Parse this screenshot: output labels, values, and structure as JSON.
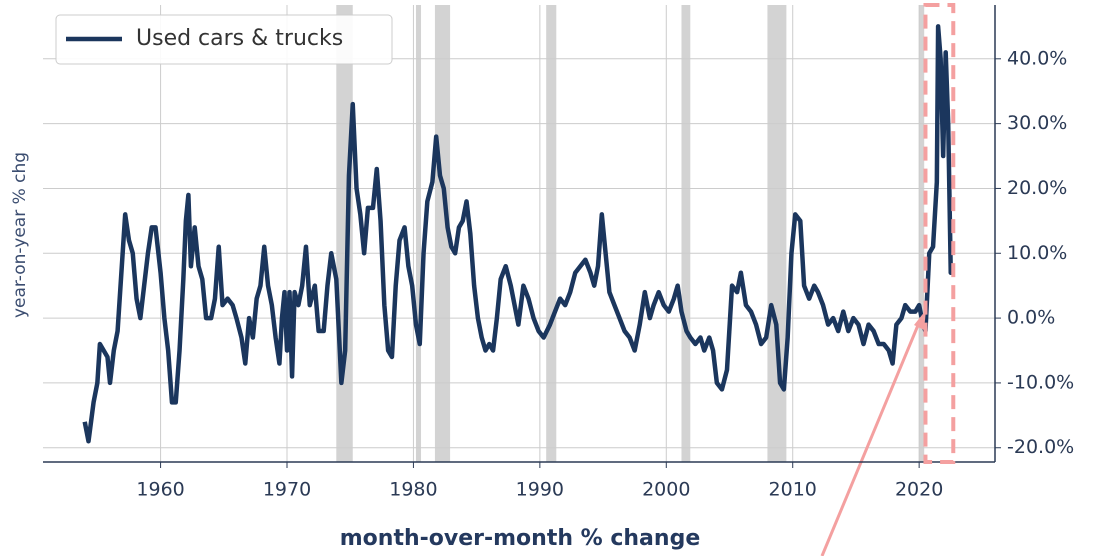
{
  "chart_data": {
    "type": "line",
    "x_label": "month-over-month % change",
    "y_label": "year-on-year % chg",
    "legend_position": "upper left",
    "grid": true,
    "xlim": [
      1950.7,
      2026
    ],
    "ylim": [
      -22.2,
      48.3
    ],
    "xticks": [
      1960,
      1970,
      1980,
      1990,
      2000,
      2010,
      2020
    ],
    "yticks": [
      {
        "value": -20,
        "label": "-20.0%"
      },
      {
        "value": -10,
        "label": "-10.0%"
      },
      {
        "value": 0,
        "label": "0.0%"
      },
      {
        "value": 10,
        "label": "10.0%"
      },
      {
        "value": 20,
        "label": "20.0%"
      },
      {
        "value": 30,
        "label": "30.0%"
      },
      {
        "value": 40,
        "label": "40.0%"
      }
    ],
    "y_axis_side": "right",
    "shaded_periods": [
      [
        1973.9,
        1975.2
      ],
      [
        1980.2,
        1980.6
      ],
      [
        1981.7,
        1982.9
      ],
      [
        1990.5,
        1991.3
      ],
      [
        2001.2,
        2001.9
      ],
      [
        2008.0,
        2009.5
      ],
      [
        2020.0,
        2020.4
      ]
    ],
    "shade_color": "#d3d3d3",
    "highlight_period": [
      2020.5,
      2022.7
    ],
    "highlight_color": "#f4a0a0",
    "x": [
      1954.0,
      1954.3,
      1954.7,
      1955.0,
      1955.2,
      1955.5,
      1955.8,
      1956.0,
      1956.3,
      1956.6,
      1957.0,
      1957.2,
      1957.5,
      1957.8,
      1958.1,
      1958.4,
      1958.7,
      1959.0,
      1959.3,
      1959.6,
      1960.0,
      1960.3,
      1960.6,
      1960.9,
      1961.2,
      1961.5,
      1961.8,
      1962.0,
      1962.2,
      1962.4,
      1962.7,
      1963.0,
      1963.3,
      1963.6,
      1964.0,
      1964.3,
      1964.6,
      1964.9,
      1965.3,
      1965.7,
      1966.0,
      1966.4,
      1966.7,
      1967.0,
      1967.3,
      1967.6,
      1967.9,
      1968.2,
      1968.5,
      1968.8,
      1969.1,
      1969.4,
      1969.6,
      1969.8,
      1970.0,
      1970.2,
      1970.4,
      1970.6,
      1970.9,
      1971.2,
      1971.5,
      1971.8,
      1972.2,
      1972.5,
      1972.9,
      1973.2,
      1973.5,
      1973.9,
      1974.1,
      1974.3,
      1974.6,
      1974.9,
      1975.2,
      1975.5,
      1975.8,
      1976.1,
      1976.4,
      1976.8,
      1977.1,
      1977.4,
      1977.7,
      1978.0,
      1978.3,
      1978.6,
      1978.9,
      1979.3,
      1979.6,
      1979.9,
      1980.2,
      1980.5,
      1980.8,
      1981.1,
      1981.5,
      1981.8,
      1982.1,
      1982.4,
      1982.7,
      1983.0,
      1983.3,
      1983.6,
      1983.9,
      1984.2,
      1984.5,
      1984.8,
      1985.1,
      1985.4,
      1985.7,
      1986.0,
      1986.3,
      1986.6,
      1986.9,
      1987.3,
      1987.7,
      1988.0,
      1988.3,
      1988.7,
      1989.1,
      1989.5,
      1989.9,
      1990.3,
      1990.8,
      1991.2,
      1991.6,
      1992.0,
      1992.4,
      1992.8,
      1993.2,
      1993.6,
      1994.0,
      1994.3,
      1994.6,
      1994.9,
      1995.2,
      1995.5,
      1995.9,
      1996.3,
      1996.7,
      1997.1,
      1997.5,
      1997.9,
      1998.3,
      1998.7,
      1999.0,
      1999.4,
      1999.8,
      2000.2,
      2000.6,
      2000.9,
      2001.2,
      2001.6,
      2001.9,
      2002.3,
      2002.7,
      2003.0,
      2003.4,
      2003.7,
      2004.0,
      2004.4,
      2004.8,
      2005.2,
      2005.6,
      2005.9,
      2006.3,
      2006.7,
      2007.1,
      2007.5,
      2007.9,
      2008.3,
      2008.7,
      2009.0,
      2009.3,
      2009.6,
      2009.9,
      2010.2,
      2010.6,
      2010.9,
      2011.3,
      2011.7,
      2012.0,
      2012.4,
      2012.8,
      2013.2,
      2013.6,
      2014.0,
      2014.4,
      2014.8,
      2015.2,
      2015.6,
      2016.0,
      2016.4,
      2016.8,
      2017.2,
      2017.6,
      2017.9,
      2018.2,
      2018.6,
      2018.9,
      2019.3,
      2019.7,
      2020.0,
      2020.3,
      2020.5,
      2020.8,
      2021.1,
      2021.4,
      2021.5,
      2021.7,
      2021.9,
      2022.1,
      2022.3,
      2022.5,
      2022.6
    ],
    "series": [
      {
        "name": "Used cars & trucks",
        "color": "#1b365d",
        "values": [
          -16,
          -19,
          -13,
          -10,
          -4,
          -5,
          -6,
          -10,
          -5,
          -2,
          10,
          16,
          12,
          10,
          3,
          0,
          5,
          10,
          14,
          14,
          7,
          0,
          -5,
          -13,
          -13,
          -5,
          6,
          15,
          19,
          8,
          14,
          8,
          6,
          0,
          0,
          3,
          11,
          2,
          3,
          2,
          0,
          -3,
          -7,
          0,
          -3,
          3,
          5,
          11,
          5,
          2,
          -3,
          -7,
          0,
          4,
          -5,
          4,
          -9,
          4,
          2,
          5,
          11,
          2,
          5,
          -2,
          -2,
          5,
          10,
          6,
          -2,
          -10,
          -5,
          22,
          33,
          20,
          16,
          10,
          17,
          17,
          23,
          15,
          2,
          -5,
          -6,
          5,
          12,
          14,
          8,
          5,
          -1,
          -4,
          10,
          18,
          21,
          28,
          22,
          20,
          14,
          11,
          10,
          14,
          15,
          18,
          13,
          5,
          0,
          -3,
          -5,
          -4,
          -5,
          0,
          6,
          8,
          5,
          2,
          -1,
          5,
          3,
          0,
          -2,
          -3,
          -1,
          1,
          3,
          2,
          4,
          7,
          8,
          9,
          7,
          5,
          8,
          16,
          10,
          4,
          2,
          0,
          -2,
          -3,
          -5,
          -1,
          4,
          0,
          2,
          4,
          2,
          1,
          3,
          5,
          1,
          -2,
          -3,
          -4,
          -3,
          -5,
          -3,
          -5,
          -10,
          -11,
          -8,
          5,
          4,
          7,
          2,
          1,
          -1,
          -4,
          -3,
          2,
          -1,
          -10,
          -11,
          -3,
          10,
          16,
          15,
          5,
          3,
          5,
          4,
          2,
          -1,
          0,
          -2,
          1,
          -2,
          0,
          -1,
          -4,
          -1,
          -2,
          -4,
          -4,
          -5,
          -7,
          -1,
          0,
          2,
          1,
          1,
          2,
          -1,
          -2,
          10,
          11,
          21,
          45,
          40,
          25,
          41,
          30,
          7,
          7
        ]
      }
    ]
  }
}
